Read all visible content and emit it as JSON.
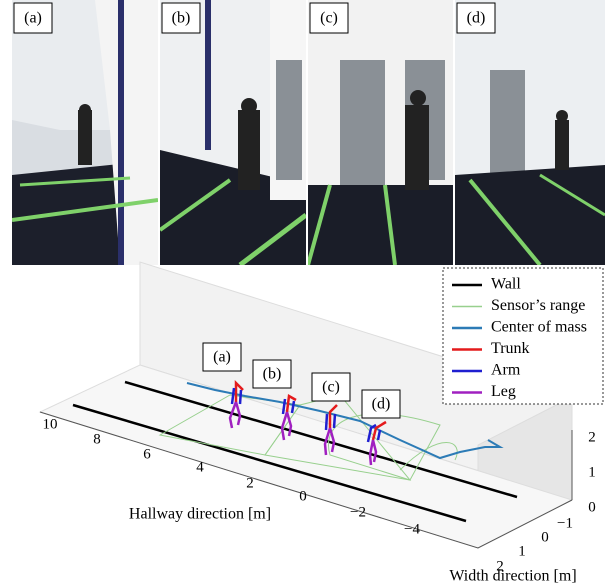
{
  "figure": {
    "photos": [
      {
        "label": "(a)"
      },
      {
        "label": "(b)"
      },
      {
        "label": "(c)"
      },
      {
        "label": "(d)"
      }
    ],
    "plot": {
      "panel_labels": [
        "(a)",
        "(b)",
        "(c)",
        "(d)"
      ],
      "legend": [
        {
          "name": "Wall",
          "color": "#000000"
        },
        {
          "name": "Sensor’s range",
          "color": "#98d08e"
        },
        {
          "name": "Center of mass",
          "color": "#2c7bb6"
        },
        {
          "name": "Trunk",
          "color": "#e41a1c"
        },
        {
          "name": "Arm",
          "color": "#1f1fd0"
        },
        {
          "name": "Leg",
          "color": "#a020c0"
        }
      ],
      "x_axis": {
        "label": "Hallway direction [m]",
        "ticks": [
          "10",
          "8",
          "6",
          "4",
          "2",
          "0",
          "−2",
          "−4"
        ]
      },
      "y_axis": {
        "label": "Width direction [m]",
        "ticks": [
          "−1",
          "0",
          "1",
          "2"
        ]
      },
      "z_axis": {
        "ticks": [
          "0",
          "1",
          "2"
        ]
      }
    }
  }
}
